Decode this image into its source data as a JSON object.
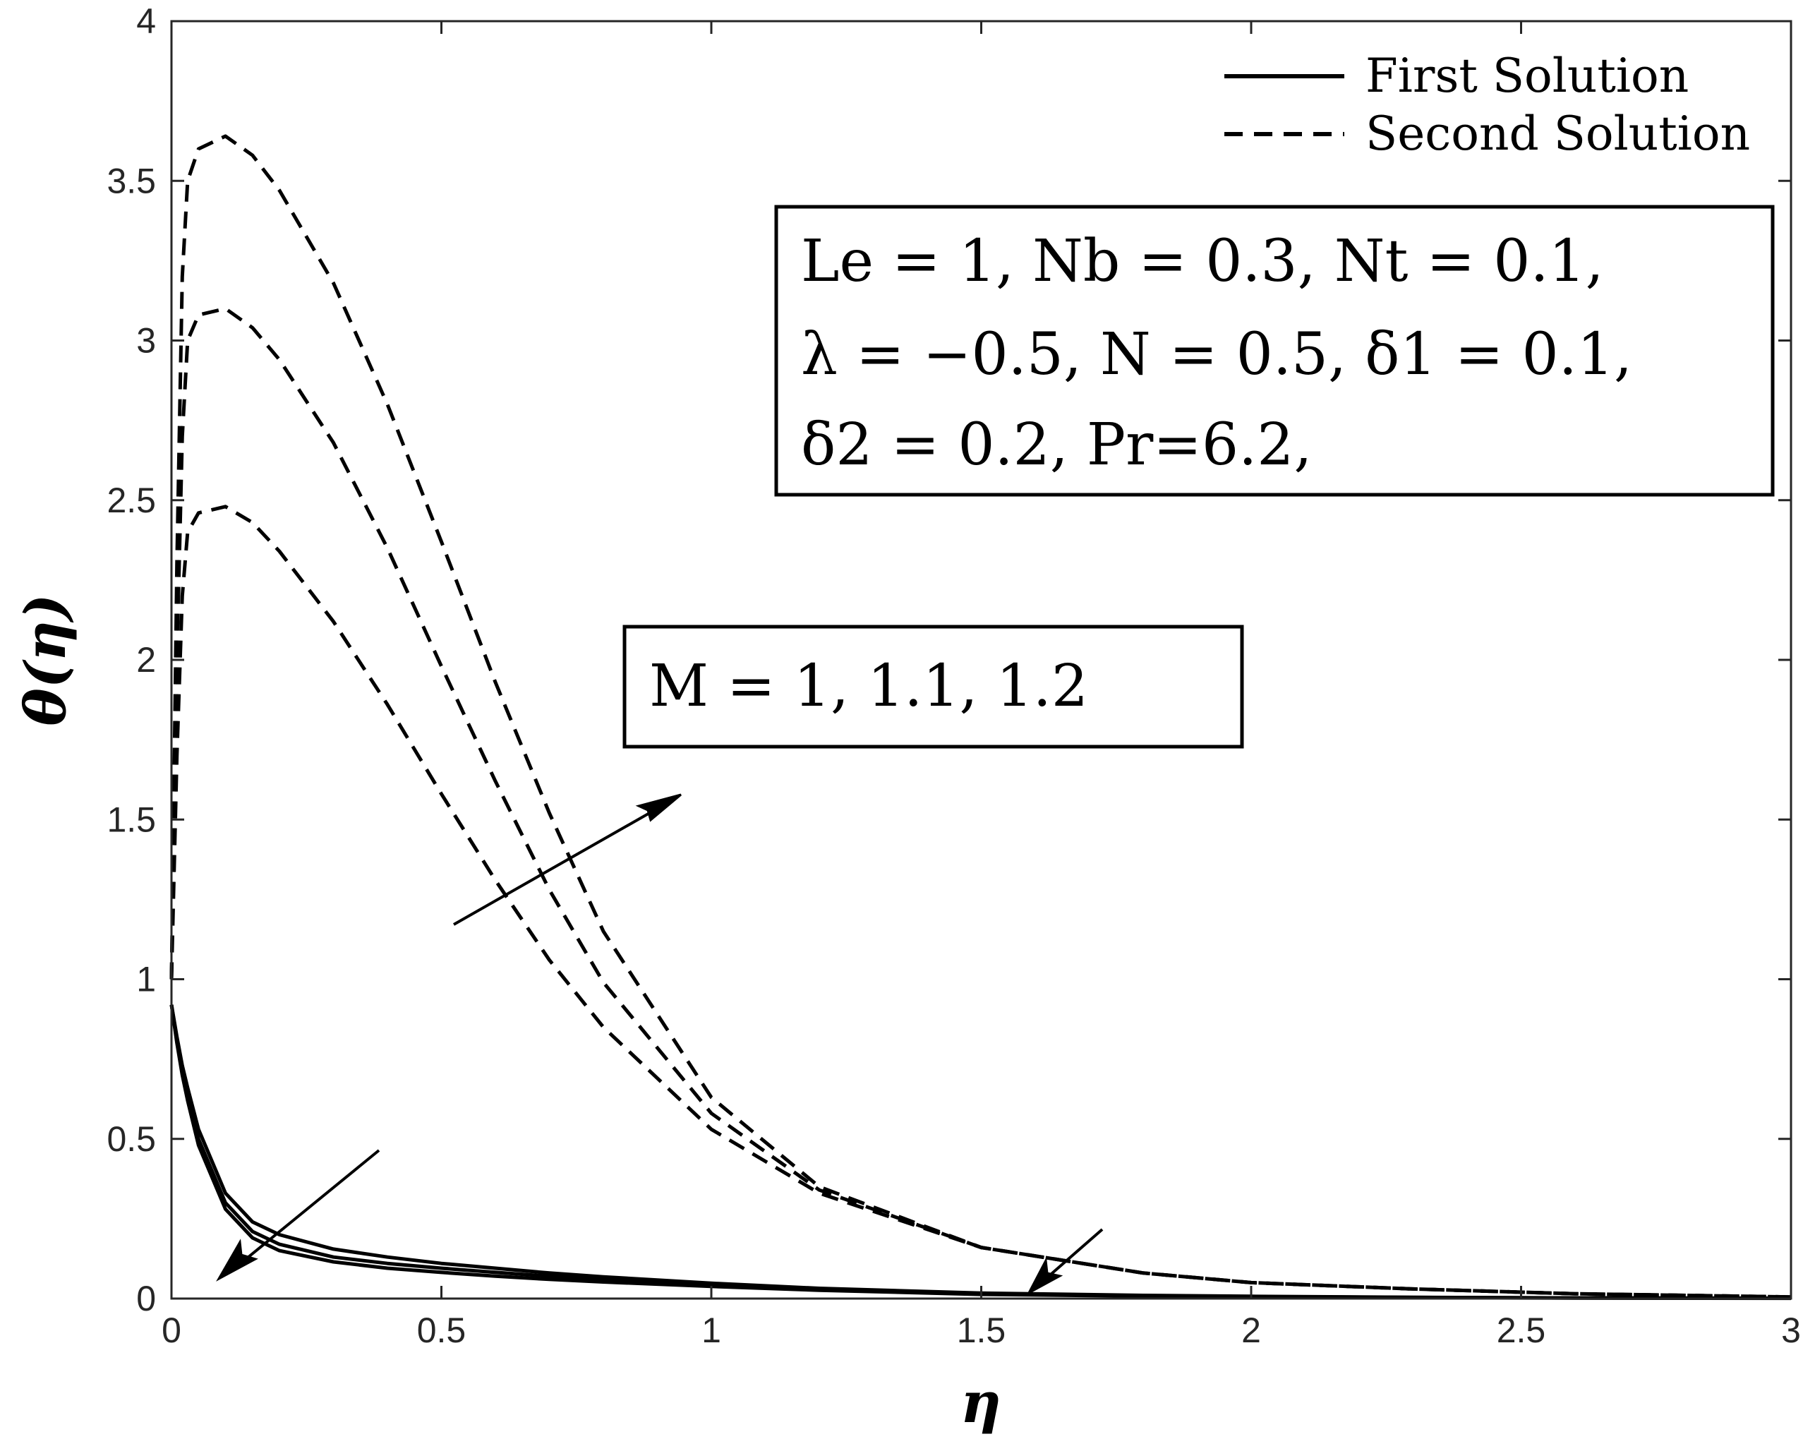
{
  "chart_data": {
    "type": "line",
    "title": "",
    "xlabel": "η",
    "ylabel": "θ(η)",
    "xlim": [
      0,
      3
    ],
    "ylim": [
      0,
      4
    ],
    "xticks": [
      "0",
      "0.5",
      "1",
      "1.5",
      "2",
      "2.5",
      "3"
    ],
    "yticks": [
      "0",
      "0.5",
      "1",
      "1.5",
      "2",
      "2.5",
      "3",
      "3.5",
      "4"
    ],
    "grid": false,
    "legend_position": "top-right",
    "legend": [
      {
        "label": "First Solution",
        "style": "solid"
      },
      {
        "label": "Second Solution",
        "style": "dashed"
      }
    ],
    "params_box": {
      "line1": "Le = 1, Nb = 0.3, Nt = 0.1,",
      "line2": "λ = −0.5, N = 0.5, δ1 = 0.1,",
      "line3": "δ2 = 0.2, Pr=6.2,"
    },
    "m_box": "M = 1, 1.1, 1.2",
    "x": [
      0,
      0.01,
      0.02,
      0.03,
      0.05,
      0.1,
      0.15,
      0.2,
      0.3,
      0.4,
      0.5,
      0.6,
      0.7,
      0.8,
      1.0,
      1.2,
      1.5,
      1.8,
      2.0,
      2.3,
      2.6,
      3.0
    ],
    "series": [
      {
        "style": "dashed",
        "M": "1",
        "values": [
          1.0,
          1.7,
          2.2,
          2.4,
          2.46,
          2.48,
          2.43,
          2.34,
          2.12,
          1.86,
          1.58,
          1.31,
          1.06,
          0.85,
          0.53,
          0.33,
          0.16,
          0.08,
          0.05,
          0.03,
          0.015,
          0.005
        ]
      },
      {
        "style": "dashed",
        "M": "1.1",
        "values": [
          1.0,
          2.0,
          2.7,
          3.0,
          3.08,
          3.1,
          3.04,
          2.94,
          2.68,
          2.35,
          1.98,
          1.62,
          1.28,
          0.99,
          0.58,
          0.34,
          0.16,
          0.08,
          0.05,
          0.03,
          0.015,
          0.005
        ]
      },
      {
        "style": "dashed",
        "M": "1.2",
        "values": [
          1.0,
          2.3,
          3.2,
          3.5,
          3.6,
          3.64,
          3.58,
          3.47,
          3.18,
          2.8,
          2.37,
          1.93,
          1.52,
          1.15,
          0.63,
          0.35,
          0.16,
          0.08,
          0.05,
          0.03,
          0.015,
          0.005
        ]
      },
      {
        "style": "solid",
        "M": "1",
        "values": [
          0.92,
          0.82,
          0.73,
          0.66,
          0.53,
          0.33,
          0.24,
          0.2,
          0.155,
          0.13,
          0.11,
          0.095,
          0.08,
          0.068,
          0.048,
          0.032,
          0.017,
          0.01,
          0.007,
          0.004,
          0.002,
          0.001
        ]
      },
      {
        "style": "solid",
        "M": "1.1",
        "values": [
          0.92,
          0.81,
          0.71,
          0.64,
          0.5,
          0.3,
          0.21,
          0.17,
          0.13,
          0.11,
          0.095,
          0.082,
          0.07,
          0.06,
          0.043,
          0.029,
          0.015,
          0.009,
          0.006,
          0.0035,
          0.002,
          0.001
        ]
      },
      {
        "style": "solid",
        "M": "1.2",
        "values": [
          0.92,
          0.8,
          0.7,
          0.62,
          0.48,
          0.28,
          0.19,
          0.15,
          0.115,
          0.095,
          0.082,
          0.07,
          0.06,
          0.052,
          0.038,
          0.026,
          0.013,
          0.008,
          0.005,
          0.003,
          0.0015,
          0.0008
        ]
      }
    ]
  }
}
